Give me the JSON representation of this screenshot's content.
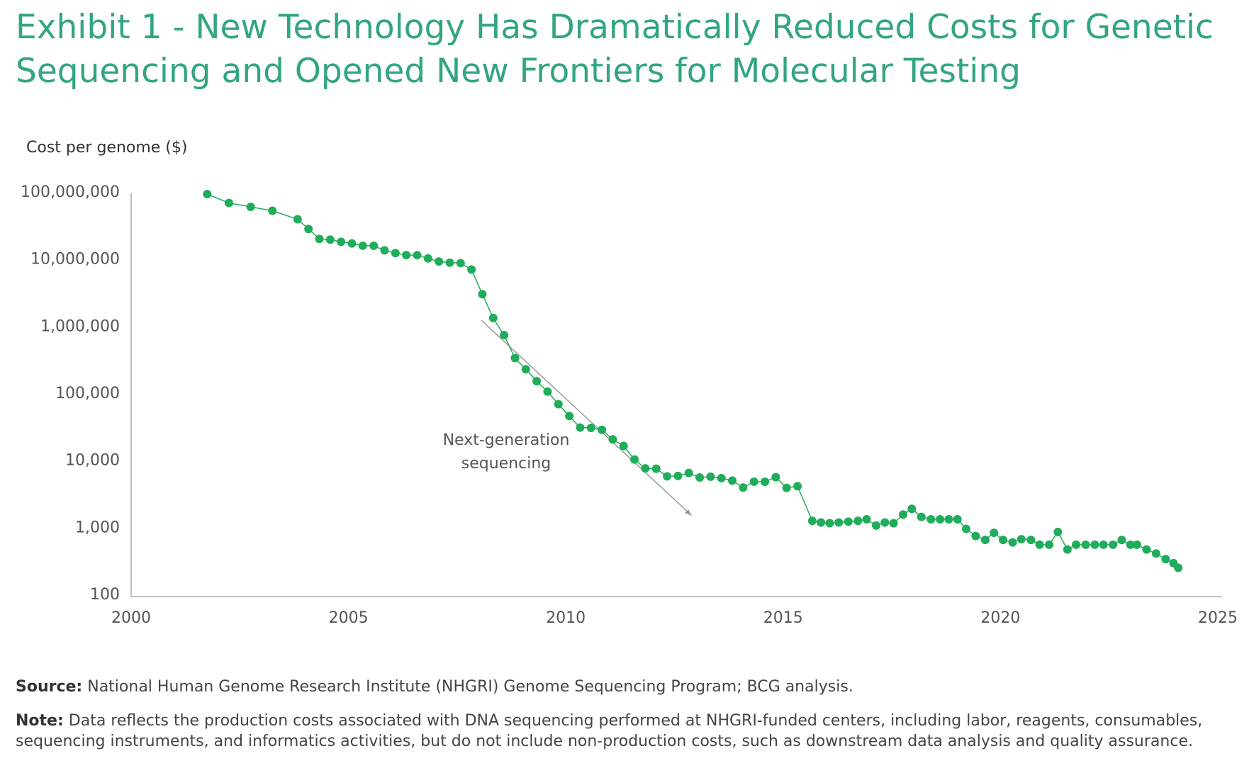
{
  "chart_data": {
    "type": "line",
    "title": "Exhibit 1 - New Technology Has Dramatically Reduced Costs for Genetic Sequencing and Opened New Frontiers for Molecular Testing",
    "y_label": "Cost per genome ($)",
    "annotation": [
      "Next-generation",
      "sequencing"
    ],
    "source": {
      "label": "Source:",
      "text": "National Human Genome Research Institute (NHGRI) Genome Sequencing Program; BCG analysis."
    },
    "note": {
      "label": "Note:",
      "text": "Data reflects the production costs associated with DNA sequencing performed at NHGRI-funded centers, including labor, reagents, consumables, sequencing instruments, and informatics activities, but do not include non-production costs, such as downstream data analysis and quality assurance."
    },
    "y_log": true,
    "grid": false,
    "xlim": [
      2000,
      2025
    ],
    "xticks": [
      2000,
      2005,
      2010,
      2015,
      2020,
      2025
    ],
    "ylim": [
      100,
      100000000
    ],
    "yticks": [
      100,
      {
        "value": 1000,
        "label": "1,000"
      },
      {
        "value": 10000,
        "label": "10,000"
      },
      {
        "value": 100000,
        "label": "100,000"
      },
      {
        "value": 1000000,
        "label": "1,000,000"
      },
      {
        "value": 10000000,
        "label": "10,000,000"
      },
      {
        "value": 100000000,
        "label": "100,000,000"
      }
    ],
    "x": [
      2001.75,
      2002.25,
      2002.75,
      2003.25,
      2003.83,
      2004.08,
      2004.33,
      2004.58,
      2004.83,
      2005.08,
      2005.33,
      2005.58,
      2005.83,
      2006.08,
      2006.33,
      2006.58,
      2006.83,
      2007.08,
      2007.33,
      2007.58,
      2007.83,
      2008.08,
      2008.33,
      2008.58,
      2008.83,
      2009.08,
      2009.33,
      2009.58,
      2009.83,
      2010.08,
      2010.33,
      2010.58,
      2010.83,
      2011.08,
      2011.33,
      2011.58,
      2011.83,
      2012.08,
      2012.33,
      2012.58,
      2012.83,
      2013.08,
      2013.33,
      2013.58,
      2013.83,
      2014.08,
      2014.33,
      2014.58,
      2014.83,
      2015.08,
      2015.33,
      2015.67,
      2015.87,
      2016.07,
      2016.28,
      2016.5,
      2016.72,
      2016.92,
      2017.14,
      2017.34,
      2017.54,
      2017.76,
      2017.96,
      2018.18,
      2018.4,
      2018.61,
      2018.81,
      2019.01,
      2019.21,
      2019.43,
      2019.65,
      2019.85,
      2020.06,
      2020.28,
      2020.48,
      2020.7,
      2020.9,
      2021.12,
      2021.32,
      2021.54,
      2021.74,
      2021.96,
      2022.17,
      2022.37,
      2022.59,
      2022.79,
      2022.99,
      2023.14,
      2023.36,
      2023.58,
      2023.8,
      2023.98,
      2024.09
    ],
    "series": [
      {
        "name": "Cost per genome",
        "color": "#1fad5b",
        "values": [
          95263072,
          70175437,
          61448422,
          53751684,
          40157554,
          28780376,
          20442576,
          19934346,
          18519312,
          17534970,
          16159699,
          16180224,
          13801124,
          12585659,
          11741970,
          11705685,
          10474556,
          9408739,
          9047002,
          8927342,
          7147571,
          3063820,
          1352982,
          752080,
          342502,
          232735,
          154714,
          108065,
          70333,
          46774,
          31512,
          31125,
          29092,
          20963,
          16712,
          10497,
          7743,
          7666,
          5901,
          5985,
          6618,
          5671,
          5826,
          5550,
          5096,
          4008,
          4920,
          4905,
          5731,
          3970,
          4211,
          1280,
          1210,
          1180,
          1210,
          1245,
          1280,
          1350,
          1090,
          1210,
          1180,
          1590,
          1930,
          1465,
          1350,
          1350,
          1350,
          1350,
          972,
          760,
          664,
          849,
          664,
          611,
          682,
          664,
          564,
          564,
          873,
          478,
          564,
          564,
          564,
          564,
          564,
          664,
          564,
          564,
          478,
          417,
          344,
          300,
          255
        ]
      }
    ]
  }
}
